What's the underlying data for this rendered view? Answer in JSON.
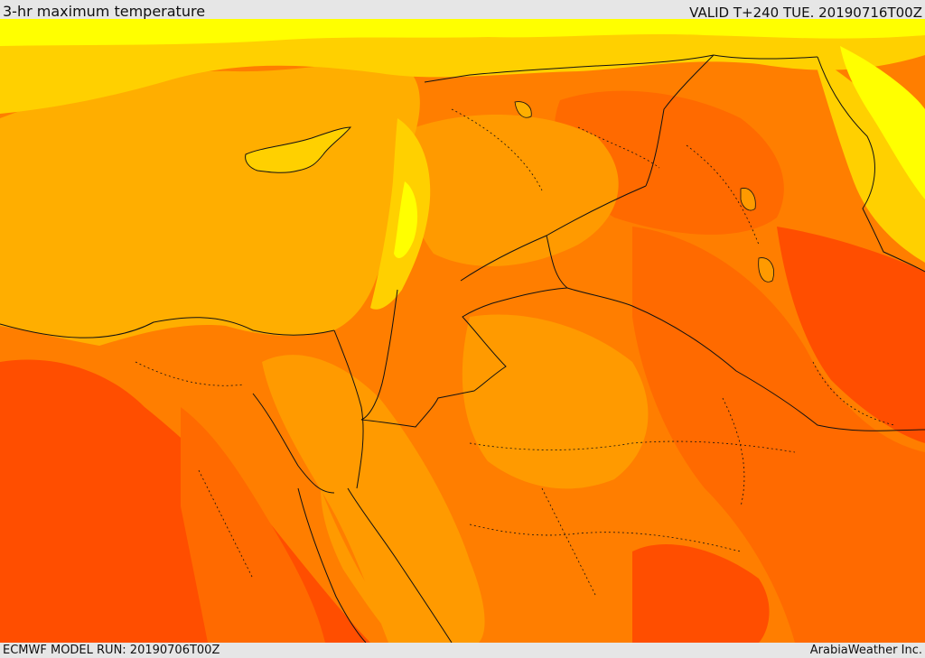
{
  "header": {
    "title": "3-hr maximum temperature",
    "valid": "VALID T+240 TUE. 20190716T00Z"
  },
  "footer": {
    "model_run": "ECMWF MODEL RUN: 20190706T00Z",
    "credit": "ArabiaWeather Inc."
  },
  "map": {
    "palette": {
      "sea": "#ffae00",
      "mild": "#ffd000",
      "cool": "#ffff00",
      "warm": "#ff9a00",
      "hot": "#ff7e00",
      "hotter": "#ff6a00",
      "hottest": "#ff4e00",
      "border": "#111111"
    }
  }
}
